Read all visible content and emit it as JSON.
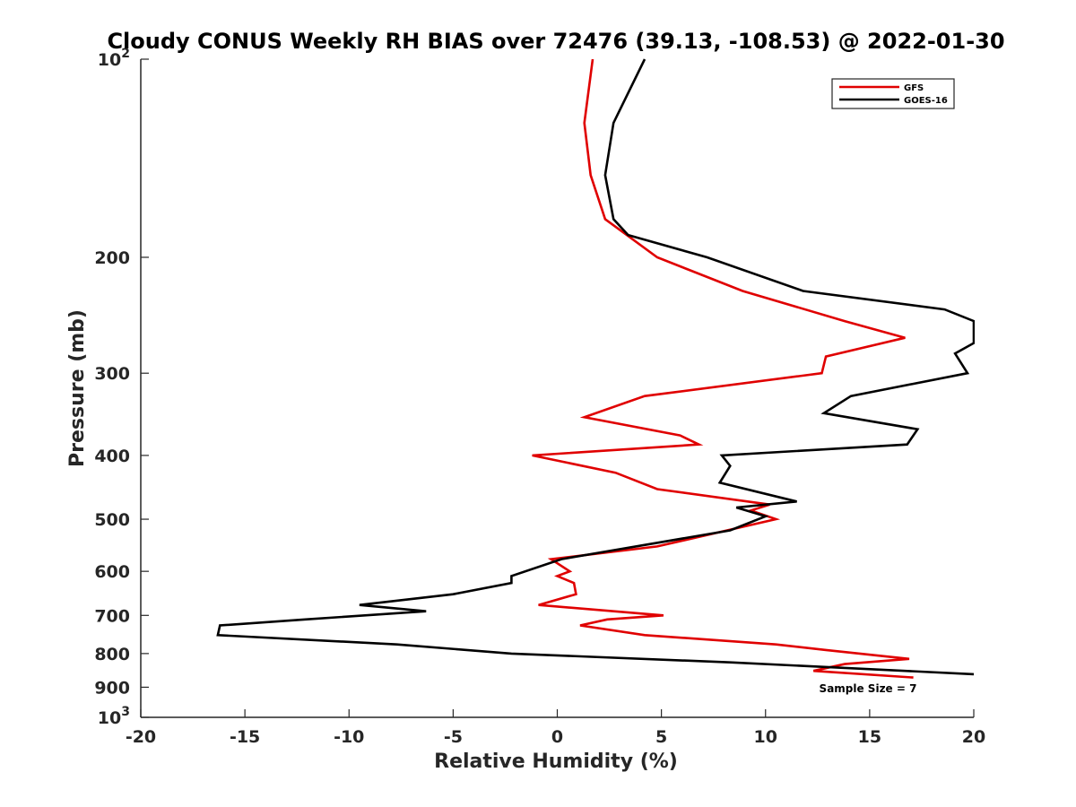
{
  "chart_data": {
    "type": "line",
    "title": "Cloudy CONUS Weekly RH BIAS over 72476 (39.13, -108.53) @ 2022-01-30",
    "xlabel": "Relative Humidity (%)",
    "ylabel": "Pressure (mb)",
    "xlim": [
      -20,
      20
    ],
    "ylim": [
      100,
      1000
    ],
    "yscale": "log",
    "y_reversed": true,
    "grid": false,
    "legend_position": "top-right",
    "x_ticks": [
      "-20",
      "-15",
      "-10",
      "-5",
      "0",
      "5",
      "10",
      "15",
      "20"
    ],
    "x_tick_values": [
      -20,
      -15,
      -10,
      -5,
      0,
      5,
      10,
      15,
      20
    ],
    "y_ticks": [
      {
        "value": 100,
        "base": "10",
        "exp": "2"
      },
      {
        "value": 200,
        "label": "200"
      },
      {
        "value": 300,
        "label": "300"
      },
      {
        "value": 400,
        "label": "400"
      },
      {
        "value": 500,
        "label": "500"
      },
      {
        "value": 600,
        "label": "600"
      },
      {
        "value": 700,
        "label": "700"
      },
      {
        "value": 800,
        "label": "800"
      },
      {
        "value": 900,
        "label": "900"
      },
      {
        "value": 1000,
        "base": "10",
        "exp": "3"
      }
    ],
    "series": [
      {
        "name": "GFS",
        "color": "#e00000",
        "points": [
          [
            1.7,
            100
          ],
          [
            1.3,
            125
          ],
          [
            1.6,
            150
          ],
          [
            2.3,
            175
          ],
          [
            4.8,
            200
          ],
          [
            8.9,
            225
          ],
          [
            13.8,
            250
          ],
          [
            16.7,
            265
          ],
          [
            12.9,
            283
          ],
          [
            12.7,
            300
          ],
          [
            4.2,
            325
          ],
          [
            1.3,
            350
          ],
          [
            5.9,
            373
          ],
          [
            6.8,
            385
          ],
          [
            -1.2,
            400
          ],
          [
            2.8,
            425
          ],
          [
            4.8,
            450
          ],
          [
            10.2,
            475
          ],
          [
            9.3,
            485
          ],
          [
            10.5,
            500
          ],
          [
            4.8,
            550
          ],
          [
            -0.3,
            575
          ],
          [
            0.6,
            600
          ],
          [
            0.0,
            610
          ],
          [
            0.8,
            625
          ],
          [
            0.9,
            650
          ],
          [
            -0.9,
            675
          ],
          [
            5.1,
            700
          ],
          [
            2.4,
            710
          ],
          [
            1.1,
            725
          ],
          [
            4.2,
            750
          ],
          [
            10.5,
            775
          ],
          [
            12.9,
            790
          ],
          [
            16.9,
            815
          ],
          [
            13.8,
            830
          ],
          [
            12.3,
            850
          ],
          [
            17.1,
            870
          ]
        ]
      },
      {
        "name": "GOES-16",
        "color": "#000000",
        "points": [
          [
            4.2,
            100
          ],
          [
            2.7,
            125
          ],
          [
            2.3,
            150
          ],
          [
            2.7,
            175
          ],
          [
            3.4,
            185
          ],
          [
            7.2,
            200
          ],
          [
            11.8,
            225
          ],
          [
            18.6,
            240
          ],
          [
            20.0,
            250
          ],
          [
            20.0,
            270
          ],
          [
            19.1,
            280
          ],
          [
            19.7,
            300
          ],
          [
            14.1,
            325
          ],
          [
            12.8,
            345
          ],
          [
            17.3,
            365
          ],
          [
            16.8,
            385
          ],
          [
            7.9,
            400
          ],
          [
            8.3,
            415
          ],
          [
            8.1,
            425
          ],
          [
            7.8,
            440
          ],
          [
            11.5,
            470
          ],
          [
            8.6,
            480
          ],
          [
            10.0,
            495
          ],
          [
            8.3,
            520
          ],
          [
            0.2,
            575
          ],
          [
            -2.2,
            610
          ],
          [
            -2.2,
            625
          ],
          [
            -5.0,
            650
          ],
          [
            -9.5,
            675
          ],
          [
            -6.3,
            690
          ],
          [
            -12.1,
            710
          ],
          [
            -16.2,
            725
          ],
          [
            -16.3,
            750
          ],
          [
            -7.7,
            775
          ],
          [
            -2.2,
            800
          ],
          [
            8.3,
            825
          ],
          [
            20.0,
            860
          ]
        ]
      }
    ],
    "annotation": "Sample Size = 7"
  }
}
